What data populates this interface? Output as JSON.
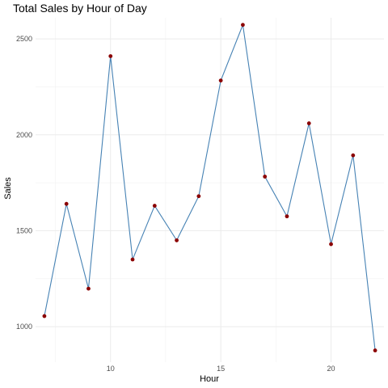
{
  "chart_data": {
    "type": "line",
    "title": "Total Sales by Hour of Day",
    "xlabel": "Hour",
    "ylabel": "Sales",
    "xlim": [
      6.6,
      22.4
    ],
    "ylim": [
      815,
      2610
    ],
    "x_ticks": [
      10,
      15,
      20
    ],
    "x_minor_ticks": [
      7.5,
      12.5,
      17.5,
      22.5
    ],
    "y_ticks": [
      1000,
      1500,
      2000,
      2500
    ],
    "y_minor_ticks": [
      1250,
      1750,
      2250
    ],
    "grid": true,
    "series": [
      {
        "x": [
          7,
          8,
          9,
          10,
          11,
          12,
          13,
          14,
          15,
          16,
          17,
          18,
          19,
          20,
          21,
          22
        ],
        "values": [
          1055,
          1640,
          1198,
          2410,
          1350,
          1630,
          1450,
          1680,
          2283,
          2573,
          1782,
          1575,
          2060,
          1430,
          1893,
          876
        ],
        "line_color": "#4682b4",
        "point_color": "#8b0000"
      }
    ]
  }
}
